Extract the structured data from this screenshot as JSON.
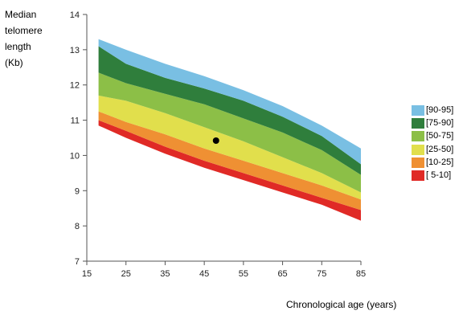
{
  "chart_data": {
    "type": "area",
    "ylabel_lines": [
      "Median",
      "telomere",
      "length",
      "(Kb)"
    ],
    "xlabel": "Chronological age (years)",
    "xlim": [
      15,
      85
    ],
    "ylim": [
      7,
      14
    ],
    "x_ticks": [
      15,
      25,
      35,
      45,
      55,
      65,
      75,
      85
    ],
    "y_ticks": [
      7,
      8,
      9,
      10,
      11,
      12,
      13,
      14
    ],
    "grid": false,
    "legend_position": "right",
    "x": [
      18,
      25,
      35,
      45,
      55,
      65,
      75,
      85
    ],
    "boundaries": [
      [
        10.85,
        10.5,
        10.05,
        9.65,
        9.3,
        8.95,
        8.6,
        8.15
      ],
      [
        11.0,
        10.7,
        10.25,
        9.85,
        9.5,
        9.15,
        8.8,
        8.45
      ],
      [
        11.25,
        10.95,
        10.6,
        10.2,
        9.85,
        9.5,
        9.15,
        8.75
      ],
      [
        11.7,
        11.55,
        11.2,
        10.8,
        10.4,
        9.95,
        9.5,
        8.95
      ],
      [
        12.35,
        12.05,
        11.75,
        11.45,
        11.05,
        10.65,
        10.15,
        9.45
      ],
      [
        13.1,
        12.6,
        12.2,
        11.9,
        11.55,
        11.1,
        10.55,
        9.75
      ],
      [
        13.3,
        13.0,
        12.6,
        12.25,
        11.85,
        11.4,
        10.85,
        10.2
      ]
    ],
    "series": [
      {
        "name": "[ 5-10]",
        "color": "#e02a26"
      },
      {
        "name": "[10-25]",
        "color": "#ef9033"
      },
      {
        "name": "[25-50]",
        "color": "#e1df4c"
      },
      {
        "name": "[50-75]",
        "color": "#8cbf47"
      },
      {
        "name": "[75-90]",
        "color": "#2f7e3c"
      },
      {
        "name": "[90-95]",
        "color": "#79bfe3"
      }
    ],
    "point": {
      "x": 48,
      "y": 10.42
    }
  }
}
